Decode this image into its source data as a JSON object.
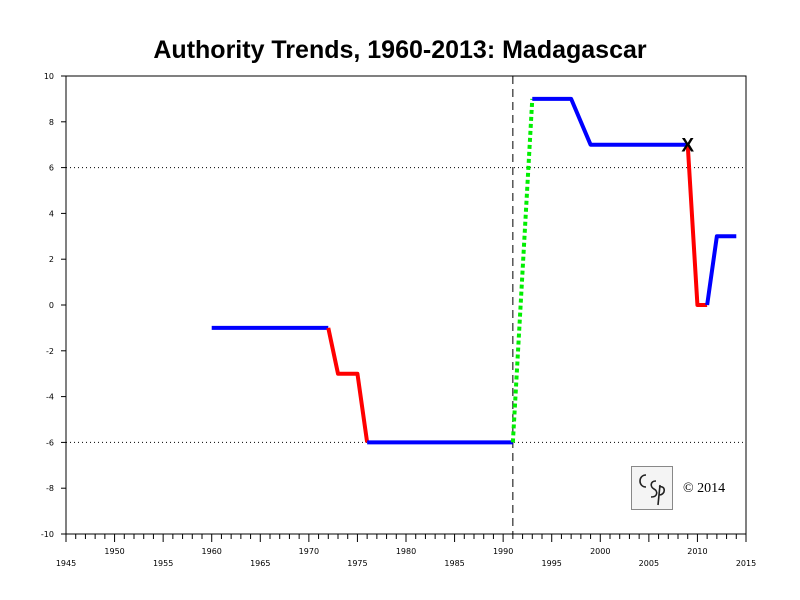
{
  "chart_data": {
    "type": "line",
    "title": "Authority Trends, 1960-2013: Madagascar",
    "xlabel": "",
    "ylabel": "",
    "xlim": [
      1945,
      2015
    ],
    "ylim": [
      -10,
      10
    ],
    "x_ticks": [
      1945,
      1950,
      1955,
      1960,
      1965,
      1970,
      1975,
      1980,
      1985,
      1990,
      1995,
      2000,
      2005,
      2010,
      2015
    ],
    "y_ticks": [
      10,
      8,
      6,
      4,
      2,
      0,
      -2,
      -4,
      -6,
      -8,
      -10
    ],
    "reference_lines_y": [
      6,
      -6
    ],
    "event_line_x": 1991,
    "segments": [
      {
        "kind": "stable",
        "color": "#0000ff",
        "points": [
          [
            1960,
            -1
          ],
          [
            1972,
            -1
          ]
        ]
      },
      {
        "kind": "change",
        "color": "#ff0000",
        "points": [
          [
            1972,
            -1
          ],
          [
            1973,
            -3
          ],
          [
            1975,
            -3
          ],
          [
            1976,
            -6
          ]
        ]
      },
      {
        "kind": "stable",
        "color": "#0000ff",
        "points": [
          [
            1976,
            -6
          ],
          [
            1991,
            -6
          ]
        ]
      },
      {
        "kind": "transition",
        "color": "#00ee00",
        "points": [
          [
            1991,
            -6
          ],
          [
            1993,
            9
          ]
        ]
      },
      {
        "kind": "stable",
        "color": "#0000ff",
        "points": [
          [
            1993,
            9
          ],
          [
            1997,
            9
          ],
          [
            1999,
            7
          ],
          [
            2009,
            7
          ]
        ]
      },
      {
        "kind": "change",
        "color": "#ff0000",
        "points": [
          [
            2009,
            7
          ],
          [
            2010,
            0
          ],
          [
            2011,
            0
          ]
        ]
      },
      {
        "kind": "stable",
        "color": "#0000ff",
        "points": [
          [
            2011,
            0
          ],
          [
            2012,
            3
          ],
          [
            2014,
            3
          ]
        ]
      }
    ],
    "markers": [
      {
        "symbol": "X",
        "x": 2009,
        "y": 7
      }
    ],
    "grid": false,
    "legend": "none"
  },
  "copyright": "© 2014",
  "logo_text": "CSP"
}
